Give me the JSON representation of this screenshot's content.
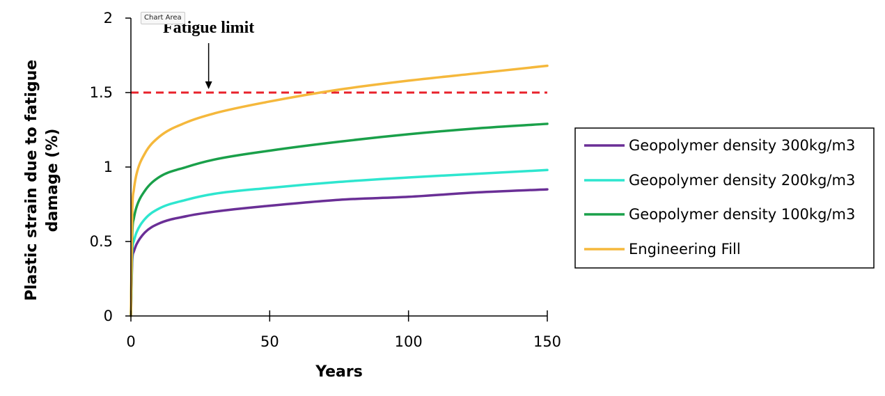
{
  "tooltip": {
    "label": "Chart Area"
  },
  "chart_data": {
    "type": "line",
    "title": "",
    "xlabel": "Years",
    "ylabel_lines": [
      "Plastic strain due to fatigue",
      "damage (%)"
    ],
    "xlim": [
      0,
      150
    ],
    "ylim": [
      0,
      2
    ],
    "x_ticks": [
      0,
      50,
      100,
      150
    ],
    "y_ticks": [
      0,
      0.5,
      1,
      1.5,
      2
    ],
    "grid": false,
    "legend_position": "right",
    "x": [
      0,
      0.5,
      1,
      2,
      5,
      10,
      20,
      30,
      50,
      75,
      100,
      125,
      150
    ],
    "series": [
      {
        "name": "Geopolymer density 300kg/m3",
        "color": "#6a2f96",
        "values": [
          0,
          0.38,
          0.43,
          0.48,
          0.56,
          0.62,
          0.67,
          0.7,
          0.74,
          0.78,
          0.8,
          0.83,
          0.85
        ]
      },
      {
        "name": "Geopolymer density 200kg/m3",
        "color": "#2ee6cf",
        "values": [
          0,
          0.44,
          0.5,
          0.56,
          0.65,
          0.72,
          0.78,
          0.82,
          0.86,
          0.9,
          0.93,
          0.955,
          0.98
        ]
      },
      {
        "name": "Geopolymer density 100kg/m3",
        "color": "#1aa04a",
        "values": [
          0,
          0.56,
          0.65,
          0.73,
          0.84,
          0.93,
          1.0,
          1.05,
          1.11,
          1.17,
          1.22,
          1.26,
          1.29
        ]
      },
      {
        "name": "Engineering Fill",
        "color": "#f5b83c",
        "values": [
          0,
          0.72,
          0.84,
          0.95,
          1.09,
          1.2,
          1.3,
          1.36,
          1.44,
          1.52,
          1.58,
          1.63,
          1.68
        ]
      }
    ],
    "reference_line": {
      "y": 1.5,
      "color": "#e8212b",
      "style": "dashed"
    },
    "annotations": [
      {
        "text": "Fatigue limit",
        "points_to_x": 28,
        "points_to_y": 1.5
      }
    ]
  }
}
